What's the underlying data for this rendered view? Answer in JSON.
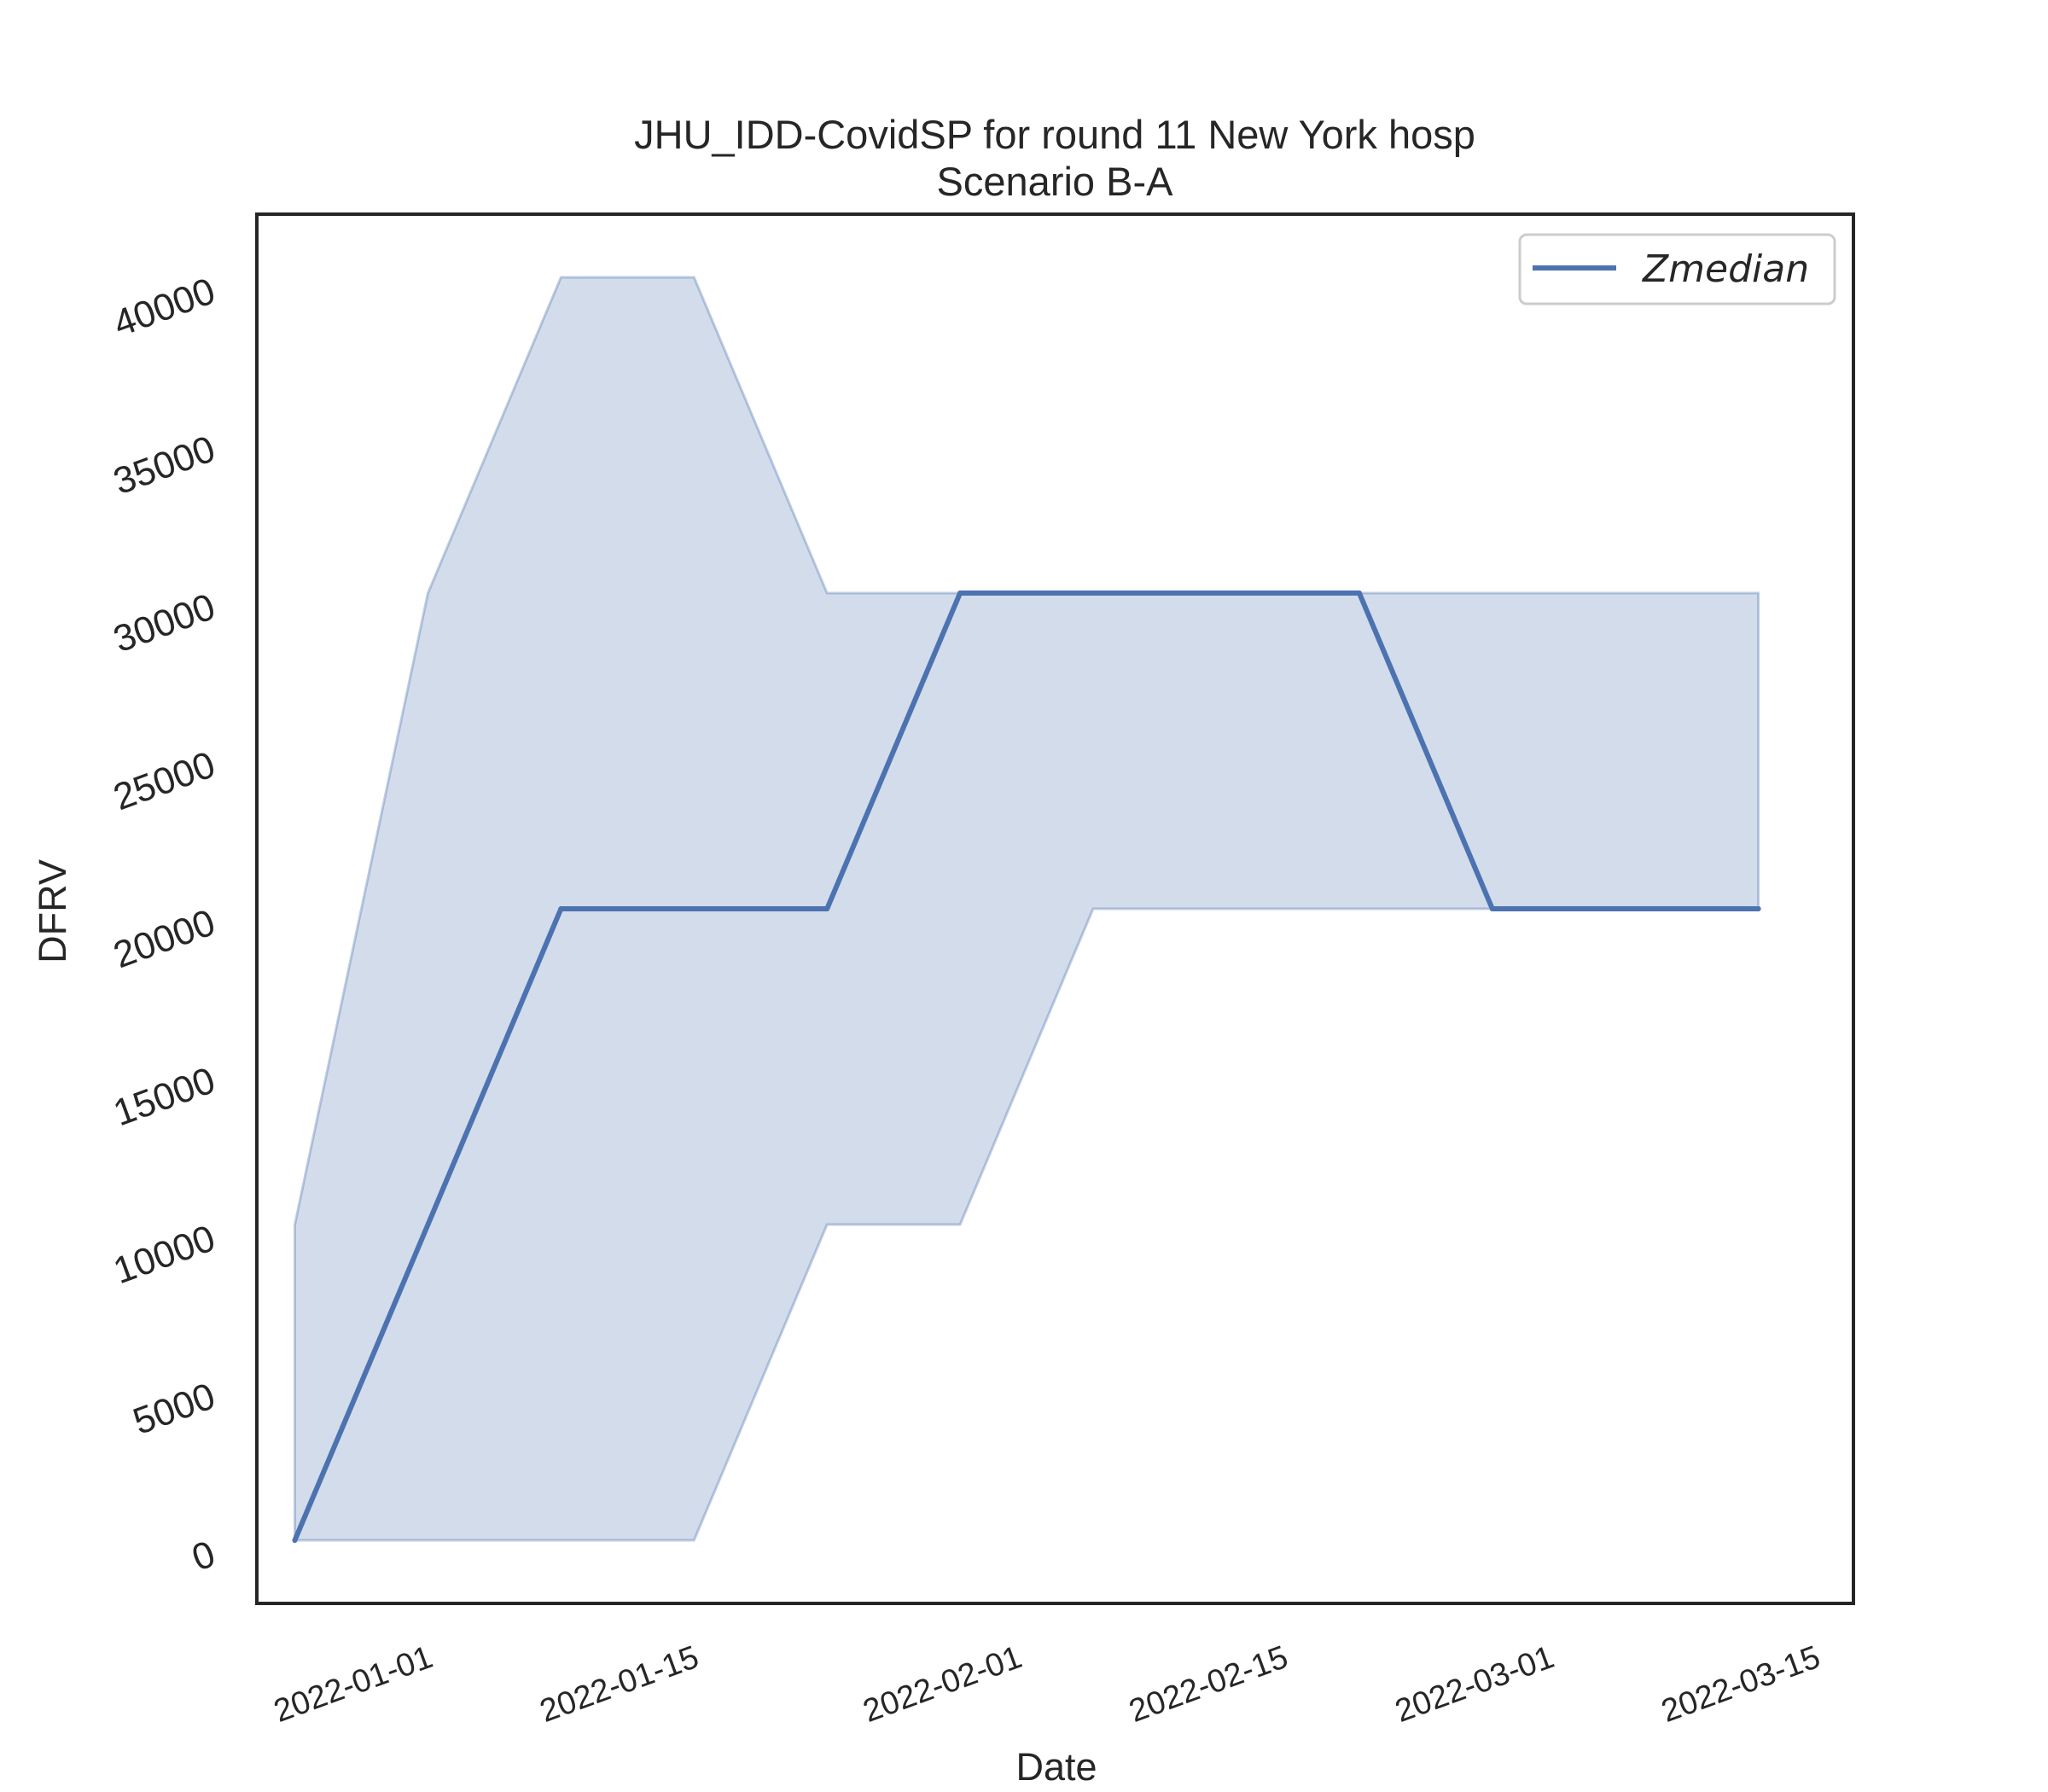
{
  "chart_data": {
    "type": "line",
    "title": "JHU_IDD-CovidSP for round 11 New York hosp",
    "subtitle": "Scenario B-A",
    "xlabel": "Date",
    "ylabel": "DFRV",
    "x": [
      "2021-12-25",
      "2022-01-01",
      "2022-01-08",
      "2022-01-15",
      "2022-01-22",
      "2022-01-29",
      "2022-02-05",
      "2022-02-12",
      "2022-02-19",
      "2022-02-26",
      "2022-03-05",
      "2022-03-12"
    ],
    "series": [
      {
        "name": "Zmedian",
        "values": [
          0,
          10000,
          20000,
          20000,
          20000,
          30000,
          30000,
          30000,
          30000,
          20000,
          20000,
          20000
        ],
        "color": "#4c72b0"
      }
    ],
    "band": {
      "lower": [
        0,
        0,
        0,
        0,
        10000,
        10000,
        20000,
        20000,
        20000,
        20000,
        20000,
        20000
      ],
      "upper": [
        10000,
        30000,
        40000,
        40000,
        30000,
        30000,
        30000,
        30000,
        30000,
        30000,
        30000,
        30000
      ],
      "color": "#4c72b0",
      "opacity": 0.25
    },
    "xticks": [
      "2022-01-01",
      "2022-01-15",
      "2022-02-01",
      "2022-02-15",
      "2022-03-01",
      "2022-03-15"
    ],
    "yticks": [
      0,
      5000,
      10000,
      15000,
      20000,
      25000,
      30000,
      35000,
      40000
    ],
    "xlim": [
      "2021-12-23",
      "2022-03-17"
    ],
    "ylim": [
      -2000,
      42000
    ],
    "grid": false,
    "legend": {
      "position": "top-right",
      "entries": [
        "Zmedian"
      ]
    }
  }
}
